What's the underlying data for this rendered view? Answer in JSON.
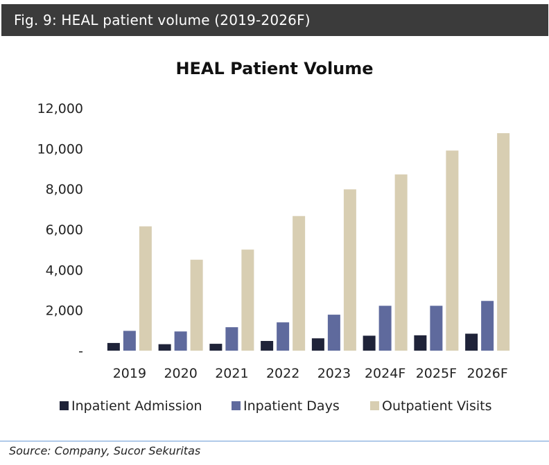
{
  "header": {
    "title": "Fig. 9: HEAL patient volume (2019-2026F)"
  },
  "source": {
    "text": "Source: Company, Sucor Sekuritas"
  },
  "colors": {
    "header_bg": "#3b3b3b",
    "inpatient_admission": "#1f2339",
    "inpatient_days": "#5f6a9d",
    "outpatient_visits": "#d8ceb2",
    "source_rule": "#6a9ad6"
  },
  "chart_data": {
    "type": "bar",
    "title": "HEAL Patient Volume",
    "xlabel": "",
    "ylabel": "",
    "categories": [
      "2019",
      "2020",
      "2021",
      "2022",
      "2023",
      "2024F",
      "2025F",
      "2026F"
    ],
    "series": [
      {
        "name": "Inpatient Admission",
        "color": "#1f2339",
        "values": [
          380,
          320,
          340,
          480,
          610,
          740,
          760,
          840
        ]
      },
      {
        "name": "Inpatient  Days",
        "color": "#5f6a9d",
        "values": [
          980,
          950,
          1160,
          1400,
          1780,
          2220,
          2220,
          2460
        ]
      },
      {
        "name": "Outpatient Visits",
        "color": "#d8ceb2",
        "values": [
          6150,
          4500,
          5000,
          6660,
          7980,
          8720,
          9900,
          10760
        ]
      }
    ],
    "ylim": [
      0,
      12000
    ],
    "yticks": [
      0,
      2000,
      4000,
      6000,
      8000,
      10000,
      12000
    ],
    "ytick_labels": [
      "-",
      "2,000",
      "4,000",
      "6,000",
      "8,000",
      "10,000",
      "12,000"
    ],
    "grid": false,
    "legend": "bottom"
  }
}
